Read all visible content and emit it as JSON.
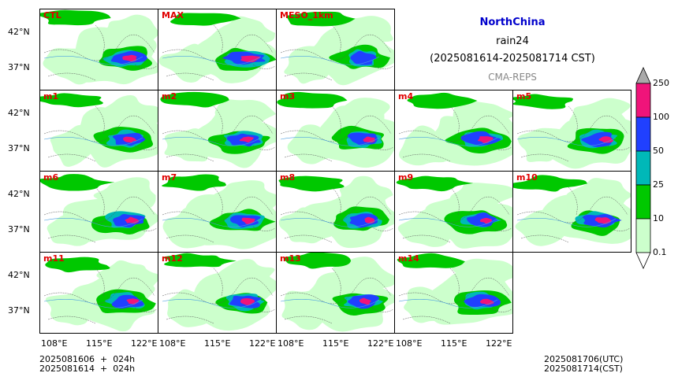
{
  "title": {
    "region": "NorthChina",
    "variable": "rain24",
    "period": "(2025081614-2025081714 CST)",
    "system": "CMA-REPS"
  },
  "panels": [
    {
      "label": "CTL",
      "seed": 3,
      "row": 0,
      "col": 0,
      "intensity": 0.7
    },
    {
      "label": "MAX",
      "seed": 7,
      "row": 0,
      "col": 1,
      "intensity": 1.0
    },
    {
      "label": "MESO_1km",
      "seed": 11,
      "row": 0,
      "col": 2,
      "intensity": 0.2
    },
    {
      "label": "m1",
      "seed": 13,
      "row": 1,
      "col": 0,
      "intensity": 0.6
    },
    {
      "label": "m2",
      "seed": 17,
      "row": 1,
      "col": 1,
      "intensity": 0.65
    },
    {
      "label": "m3",
      "seed": 19,
      "row": 1,
      "col": 2,
      "intensity": 0.6
    },
    {
      "label": "m4",
      "seed": 23,
      "row": 1,
      "col": 3,
      "intensity": 0.8
    },
    {
      "label": "m5",
      "seed": 29,
      "row": 1,
      "col": 4,
      "intensity": 0.65
    },
    {
      "label": "m6",
      "seed": 31,
      "row": 2,
      "col": 0,
      "intensity": 0.7
    },
    {
      "label": "m7",
      "seed": 37,
      "row": 2,
      "col": 1,
      "intensity": 0.7
    },
    {
      "label": "m8",
      "seed": 41,
      "row": 2,
      "col": 2,
      "intensity": 0.55
    },
    {
      "label": "m9",
      "seed": 43,
      "row": 2,
      "col": 3,
      "intensity": 0.55
    },
    {
      "label": "m10",
      "seed": 47,
      "row": 2,
      "col": 4,
      "intensity": 0.8
    },
    {
      "label": "m11",
      "seed": 53,
      "row": 3,
      "col": 0,
      "intensity": 0.6
    },
    {
      "label": "m12",
      "seed": 59,
      "row": 3,
      "col": 1,
      "intensity": 0.65
    },
    {
      "label": "m13",
      "seed": 61,
      "row": 3,
      "col": 2,
      "intensity": 0.55
    },
    {
      "label": "m14",
      "seed": 67,
      "row": 3,
      "col": 3,
      "intensity": 0.7
    }
  ],
  "lat_ticks": [
    "42°N",
    "37°N"
  ],
  "lon_ticks": [
    "108°E",
    "115°E",
    "122°E"
  ],
  "colorbar": {
    "levels": [
      "0.1",
      "10",
      "25",
      "50",
      "100",
      "250"
    ],
    "colors": [
      "#ccffcc",
      "#00c800",
      "#00b8b8",
      "#2040ff",
      "#f0147a",
      "#aaaaaa"
    ]
  },
  "footer": {
    "left_line1": "2025081606  +  024h",
    "left_line2": "2025081614  +  024h",
    "right_line1": "2025081706(UTC)",
    "right_line2": "2025081714(CST)"
  }
}
